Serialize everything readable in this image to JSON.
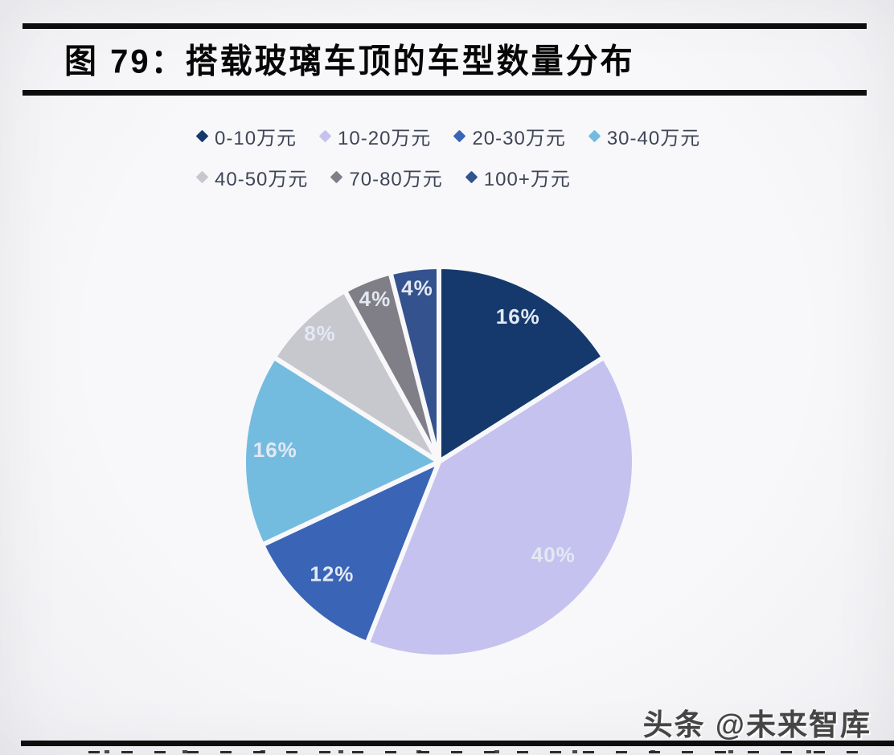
{
  "figure": {
    "title": "图 79：搭载玻璃车顶的车型数量分布"
  },
  "watermark": {
    "text": "头条 @未来智库"
  },
  "chart_data": {
    "type": "pie",
    "title": "搭载玻璃车顶的车型数量分布",
    "categories": [
      "0-10万元",
      "10-20万元",
      "20-30万元",
      "30-40万元",
      "40-50万元",
      "70-80万元",
      "100+万元"
    ],
    "values": [
      16,
      40,
      12,
      16,
      8,
      4,
      4
    ],
    "unit": "%",
    "slice_labels": [
      "16%",
      "40%",
      "12%",
      "16%",
      "8%",
      "4%",
      "4%"
    ],
    "colors": [
      "#15396C",
      "#C6C2EF",
      "#3A64B5",
      "#74BCDF",
      "#C7C7CE",
      "#807E86",
      "#34528D"
    ],
    "slice_label_color": "#E3E8F3",
    "gap_color": "#F8F8FA",
    "legend_marker": "diamond",
    "legend_position": "top",
    "start_angle": "12-o'clock clockwise",
    "legend_row_split": [
      4,
      3
    ]
  }
}
